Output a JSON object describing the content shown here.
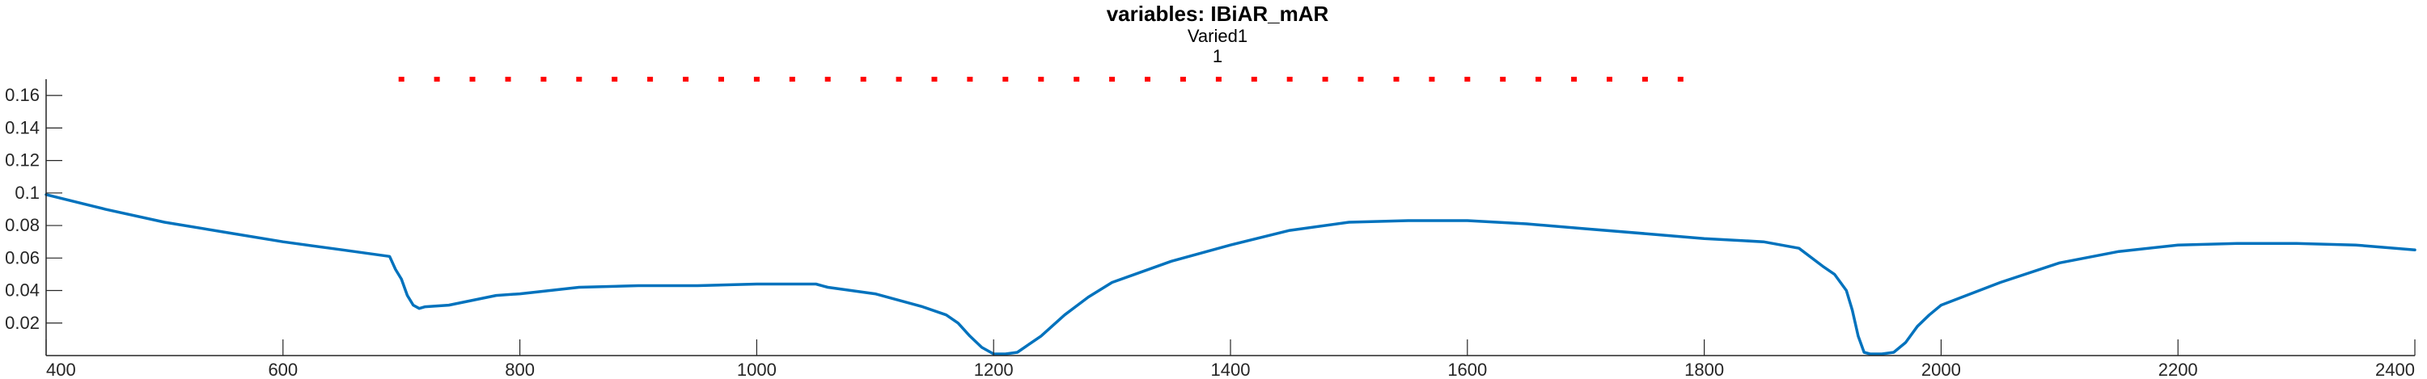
{
  "chart_data": {
    "type": "line",
    "title": "variables: IBiAR_mAR",
    "subtitle_lines": [
      "Varied1",
      "1"
    ],
    "xlabel": "",
    "ylabel": "",
    "xlim": [
      400,
      2400
    ],
    "ylim": [
      0,
      0.17
    ],
    "grid": false,
    "legend": "none",
    "x_ticks": [
      400,
      600,
      800,
      1000,
      1200,
      1400,
      1600,
      1800,
      2000,
      2200,
      2400
    ],
    "x_tick_labels": [
      "400",
      "600",
      "800",
      "1000",
      "1200",
      "1400",
      "1600",
      "1800",
      "2000",
      "2200",
      "2400"
    ],
    "y_ticks": [
      0.02,
      0.04,
      0.06,
      0.08,
      0.1,
      0.12,
      0.14,
      0.16
    ],
    "y_tick_labels": [
      "0.02",
      "0.04",
      "0.06",
      "0.08",
      "0.1",
      "0.12",
      "0.14",
      "0.16"
    ],
    "colors": {
      "line": "#0072BD",
      "markers": "#FF0000",
      "axis": "#262626"
    },
    "series": [
      {
        "style": "line",
        "color": "#0072BD",
        "x": [
          400,
          450,
          500,
          550,
          600,
          650,
          690,
          695,
          700,
          705,
          710,
          715,
          720,
          740,
          760,
          780,
          800,
          850,
          900,
          950,
          1000,
          1050,
          1060,
          1100,
          1120,
          1140,
          1160,
          1170,
          1180,
          1190,
          1200,
          1210,
          1220,
          1240,
          1260,
          1280,
          1300,
          1350,
          1400,
          1450,
          1500,
          1550,
          1600,
          1650,
          1700,
          1750,
          1800,
          1850,
          1880,
          1900,
          1910,
          1920,
          1925,
          1930,
          1935,
          1940,
          1950,
          1960,
          1970,
          1980,
          1990,
          2000,
          2050,
          2100,
          2150,
          2200,
          2250,
          2300,
          2350,
          2400
        ],
        "y": [
          0.099,
          0.09,
          0.082,
          0.076,
          0.07,
          0.065,
          0.061,
          0.053,
          0.047,
          0.037,
          0.031,
          0.029,
          0.03,
          0.031,
          0.034,
          0.037,
          0.038,
          0.042,
          0.043,
          0.043,
          0.044,
          0.044,
          0.042,
          0.038,
          0.034,
          0.03,
          0.025,
          0.02,
          0.012,
          0.005,
          0.001,
          0.001,
          0.002,
          0.012,
          0.025,
          0.036,
          0.045,
          0.058,
          0.068,
          0.077,
          0.082,
          0.083,
          0.083,
          0.081,
          0.078,
          0.075,
          0.072,
          0.07,
          0.066,
          0.055,
          0.05,
          0.04,
          0.028,
          0.012,
          0.002,
          0.001,
          0.001,
          0.002,
          0.008,
          0.018,
          0.025,
          0.031,
          0.045,
          0.057,
          0.064,
          0.068,
          0.069,
          0.069,
          0.068,
          0.065
        ]
      },
      {
        "style": "dots",
        "color": "#FF0000",
        "x": [
          700,
          730,
          760,
          790,
          820,
          850,
          880,
          910,
          940,
          970,
          1000,
          1030,
          1060,
          1090,
          1120,
          1150,
          1180,
          1210,
          1240,
          1270,
          1300,
          1330,
          1360,
          1390,
          1420,
          1450,
          1480,
          1510,
          1540,
          1570,
          1600,
          1630,
          1660,
          1690,
          1720,
          1750,
          1780
        ],
        "y": [
          0.17,
          0.17,
          0.17,
          0.17,
          0.17,
          0.17,
          0.17,
          0.17,
          0.17,
          0.17,
          0.17,
          0.17,
          0.17,
          0.17,
          0.17,
          0.17,
          0.17,
          0.17,
          0.17,
          0.17,
          0.17,
          0.17,
          0.17,
          0.17,
          0.17,
          0.17,
          0.17,
          0.17,
          0.17,
          0.17,
          0.17,
          0.17,
          0.17,
          0.17,
          0.17,
          0.17,
          0.17
        ]
      }
    ]
  }
}
